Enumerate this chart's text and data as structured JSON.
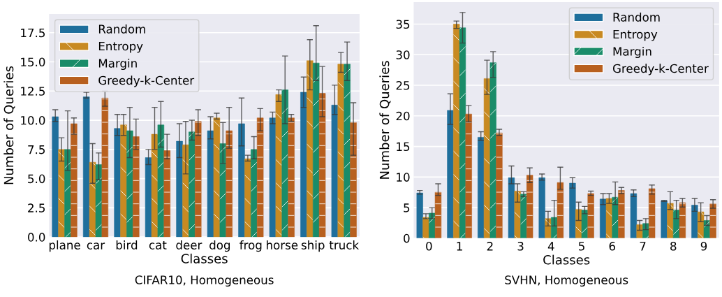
{
  "chart_data": [
    {
      "type": "bar",
      "title": "CIFAR10, Homogeneous",
      "xlabel": "Classes",
      "ylabel": "Number of Queries",
      "categories": [
        "plane",
        "car",
        "bird",
        "cat",
        "deer",
        "dog",
        "frog",
        "horse",
        "ship",
        "truck"
      ],
      "ylim": [
        0,
        19.1
      ],
      "yticks": [
        {
          "value": 0,
          "label": "0.0"
        },
        {
          "value": 2.5,
          "label": "2.5"
        },
        {
          "value": 5,
          "label": "5.0"
        },
        {
          "value": 7.5,
          "label": "7.5"
        },
        {
          "value": 10,
          "label": "10.0"
        },
        {
          "value": 12.5,
          "label": "12.5"
        },
        {
          "value": 15,
          "label": "15.0"
        },
        {
          "value": 17.5,
          "label": "17.5"
        }
      ],
      "grid": "y",
      "legend": "top left",
      "series": [
        {
          "name": "Random",
          "color": "#1f6f9c",
          "values": [
            10.3,
            12.0,
            9.3,
            6.8,
            8.2,
            9.1,
            9.7,
            10.2,
            12.4,
            11.3
          ],
          "errors": [
            [
              9.9,
              10.9
            ],
            [
              11.9,
              12.4
            ],
            [
              8.7,
              10.5
            ],
            [
              6.2,
              7.5
            ],
            [
              6.8,
              9.7
            ],
            [
              8.4,
              10.3
            ],
            [
              7.8,
              11.9
            ],
            [
              9.7,
              10.7
            ],
            [
              11.1,
              13.7
            ],
            [
              10.5,
              13.0
            ]
          ]
        },
        {
          "name": "Entropy",
          "color": "#c88a22",
          "values": [
            7.5,
            6.4,
            9.6,
            8.8,
            7.9,
            10.2,
            6.7,
            12.2,
            15.1,
            14.8
          ],
          "errors": [
            [
              6.5,
              8.5
            ],
            [
              4.6,
              8.0
            ],
            [
              8.7,
              10.5
            ],
            [
              7.5,
              11.1
            ],
            [
              5.4,
              9.9
            ],
            [
              10.1,
              10.6
            ],
            [
              6.5,
              7.0
            ],
            [
              11.6,
              12.6
            ],
            [
              12.6,
              16.9
            ],
            [
              14.1,
              15.8
            ]
          ]
        },
        {
          "name": "Margin",
          "color": "#1a8c69",
          "values": [
            7.5,
            6.2,
            9.1,
            9.6,
            9.0,
            8.0,
            7.5,
            12.6,
            14.9,
            14.8
          ],
          "errors": [
            [
              5.7,
              10.8
            ],
            [
              4.9,
              7.2
            ],
            [
              6.8,
              11.1
            ],
            [
              7.7,
              11.6
            ],
            [
              8.3,
              10.0
            ],
            [
              6.3,
              9.8
            ],
            [
              6.7,
              8.6
            ],
            [
              9.7,
              15.5
            ],
            [
              13.4,
              18.1
            ],
            [
              13.4,
              16.7
            ]
          ]
        },
        {
          "name": "Greedy-k-Center",
          "color": "#b8601f",
          "values": [
            9.7,
            11.9,
            8.6,
            7.4,
            9.9,
            9.1,
            10.2,
            10.2,
            12.3,
            9.8
          ],
          "errors": [
            [
              8.8,
              10.2
            ],
            [
              11.2,
              12.5
            ],
            [
              7.5,
              10.1
            ],
            [
              6.7,
              8.8
            ],
            [
              8.7,
              10.9
            ],
            [
              7.6,
              11.1
            ],
            [
              9.1,
              11.0
            ],
            [
              9.9,
              10.5
            ],
            [
              10.3,
              14.6
            ],
            [
              7.0,
              11.5
            ]
          ]
        }
      ]
    },
    {
      "type": "bar",
      "title": "SVHN, Homogeneous",
      "xlabel": "Classes",
      "ylabel": "Number of Queries",
      "categories": [
        "0",
        "1",
        "2",
        "3",
        "4",
        "5",
        "6",
        "7",
        "8",
        "9"
      ],
      "ylim": [
        0,
        38.6
      ],
      "yticks": [
        0,
        5,
        10,
        15,
        20,
        25,
        30,
        35
      ],
      "grid": "y",
      "legend": "top right",
      "series": [
        {
          "name": "Random",
          "color": "#1f6f9c",
          "values": [
            7.4,
            20.9,
            16.5,
            9.9,
            9.9,
            9.0,
            6.4,
            7.3,
            6.1,
            5.4
          ],
          "errors": [
            [
              7.2,
              7.8
            ],
            [
              18.6,
              23.6
            ],
            [
              16.0,
              17.4
            ],
            [
              8.9,
              11.8
            ],
            [
              9.5,
              10.5
            ],
            [
              8.2,
              9.9
            ],
            [
              5.5,
              7.3
            ],
            [
              6.8,
              7.9
            ],
            [
              6.0,
              6.2
            ],
            [
              4.4,
              6.5
            ]
          ]
        },
        {
          "name": "Entropy",
          "color": "#c88a22",
          "values": [
            3.4,
            35.0,
            26.1,
            7.7,
            3.2,
            4.7,
            6.5,
            2.2,
            5.7,
            4.3
          ],
          "errors": [
            [
              3.2,
              4.0
            ],
            [
              34.3,
              35.5
            ],
            [
              23.5,
              29.1
            ],
            [
              5.9,
              8.9
            ],
            [
              2.0,
              4.4
            ],
            [
              2.9,
              5.9
            ],
            [
              5.7,
              7.3
            ],
            [
              1.3,
              2.9
            ],
            [
              4.7,
              7.6
            ],
            [
              2.7,
              5.8
            ]
          ]
        },
        {
          "name": "Margin",
          "color": "#1a8c69",
          "values": [
            4.1,
            34.4,
            28.7,
            7.2,
            3.4,
            4.6,
            6.7,
            2.4,
            4.6,
            2.9
          ],
          "errors": [
            [
              3.2,
              5.0
            ],
            [
              31.9,
              36.9
            ],
            [
              26.3,
              30.5
            ],
            [
              6.8,
              7.6
            ],
            [
              2.0,
              6.2
            ],
            [
              4.0,
              5.2
            ],
            [
              5.5,
              9.2
            ],
            [
              1.4,
              3.2
            ],
            [
              3.2,
              6.2
            ],
            [
              2.1,
              3.7
            ]
          ]
        },
        {
          "name": "Greedy-k-Center",
          "color": "#b8601f",
          "values": [
            7.5,
            20.3,
            17.2,
            10.3,
            9.1,
            7.3,
            7.8,
            8.1,
            5.8,
            5.6
          ],
          "errors": [
            [
              7.0,
              8.9
            ],
            [
              19.0,
              21.7
            ],
            [
              16.8,
              17.8
            ],
            [
              9.1,
              11.5
            ],
            [
              8.0,
              11.6
            ],
            [
              7.0,
              7.7
            ],
            [
              7.3,
              8.3
            ],
            [
              7.2,
              8.7
            ],
            [
              5.1,
              6.5
            ],
            [
              4.9,
              6.3
            ]
          ]
        }
      ]
    }
  ]
}
